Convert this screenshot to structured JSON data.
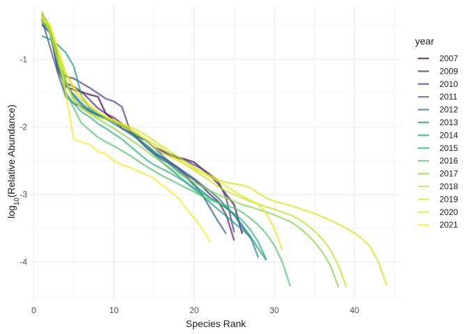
{
  "chart_data": {
    "type": "line",
    "xlabel": "Species Rank",
    "ylabel": "log10(Relative Abundance)",
    "xlim": [
      -0.3,
      45.9
    ],
    "ylim": [
      -4.58,
      -0.2
    ],
    "x_ticks": [
      0,
      10,
      20,
      30,
      40
    ],
    "y_ticks": [
      -1,
      -2,
      -3,
      -4
    ],
    "grid": true,
    "legend_position": "right",
    "legend_title": "year",
    "line_opacity": 0.7,
    "series": [
      {
        "name": "2007",
        "color": "#440154",
        "x": [
          1,
          2,
          3,
          4,
          5,
          6,
          7,
          8,
          9,
          10,
          11,
          12,
          13,
          14,
          15,
          16,
          17,
          18,
          19,
          20,
          21,
          22,
          23,
          24,
          25,
          26
        ],
        "y": [
          -0.42,
          -0.55,
          -1.15,
          -1.4,
          -1.45,
          -1.48,
          -1.52,
          -1.55,
          -1.8,
          -1.9,
          -2.02,
          -2.08,
          -2.14,
          -2.2,
          -2.3,
          -2.35,
          -2.4,
          -2.45,
          -2.48,
          -2.52,
          -2.62,
          -2.72,
          -2.84,
          -3.0,
          -3.15,
          -3.58
        ]
      },
      {
        "name": "2009",
        "color": "#482173",
        "x": [
          1,
          2,
          3,
          4,
          5,
          6,
          7,
          8,
          9,
          10,
          11,
          12,
          13,
          14,
          15,
          16,
          17,
          18,
          19,
          20,
          21,
          22,
          23,
          24,
          25
        ],
        "y": [
          -0.48,
          -0.6,
          -1.1,
          -1.35,
          -1.4,
          -1.48,
          -1.6,
          -1.72,
          -1.8,
          -1.86,
          -1.95,
          -2.05,
          -2.18,
          -2.3,
          -2.4,
          -2.45,
          -2.52,
          -2.6,
          -2.7,
          -2.78,
          -2.88,
          -3.0,
          -3.1,
          -3.3,
          -3.68
        ]
      },
      {
        "name": "2010",
        "color": "#433E85",
        "x": [
          1,
          2,
          3,
          4,
          5,
          6,
          7,
          8,
          9,
          10,
          11,
          12,
          13,
          14,
          15,
          16,
          17,
          18,
          19,
          20,
          21,
          22,
          23,
          24,
          25
        ],
        "y": [
          -0.38,
          -0.5,
          -1.12,
          -1.25,
          -1.28,
          -1.35,
          -1.42,
          -1.5,
          -1.58,
          -1.62,
          -1.7,
          -2.05,
          -2.12,
          -2.2,
          -2.3,
          -2.38,
          -2.42,
          -2.46,
          -2.5,
          -2.56,
          -2.62,
          -2.7,
          -2.8,
          -3.05,
          -3.56
        ]
      },
      {
        "name": "2011",
        "color": "#38598C",
        "x": [
          1,
          2,
          3,
          4,
          5,
          6,
          7,
          8,
          9,
          10,
          11,
          12,
          13,
          14,
          15,
          16,
          17,
          18,
          19,
          20,
          21,
          22,
          23,
          24
        ],
        "y": [
          -0.4,
          -0.8,
          -1.2,
          -1.55,
          -1.65,
          -1.7,
          -1.78,
          -1.83,
          -1.88,
          -1.92,
          -1.98,
          -2.05,
          -2.18,
          -2.28,
          -2.38,
          -2.48,
          -2.55,
          -2.62,
          -2.72,
          -2.85,
          -3.0,
          -3.2,
          -3.4,
          -3.58
        ]
      },
      {
        "name": "2012",
        "color": "#2D708E",
        "x": [
          1,
          2,
          3,
          4,
          5,
          6,
          7,
          8,
          9,
          10,
          11,
          12,
          13,
          14,
          15,
          16,
          17,
          18,
          19,
          20,
          21,
          22,
          23,
          24,
          25,
          26,
          27
        ],
        "y": [
          -0.35,
          -0.5,
          -1.1,
          -1.38,
          -1.52,
          -1.65,
          -1.75,
          -1.82,
          -1.87,
          -1.92,
          -1.98,
          -2.05,
          -2.12,
          -2.2,
          -2.3,
          -2.42,
          -2.52,
          -2.6,
          -2.68,
          -2.76,
          -2.86,
          -2.95,
          -3.05,
          -3.18,
          -3.3,
          -3.48,
          -3.64
        ]
      },
      {
        "name": "2013",
        "color": "#25858E",
        "x": [
          1,
          2,
          3,
          4,
          5,
          6,
          7,
          8,
          9,
          10,
          11,
          12,
          13,
          14,
          15,
          16,
          17,
          18,
          19,
          20,
          21,
          22,
          23,
          24,
          25,
          26,
          27,
          28
        ],
        "y": [
          -0.32,
          -0.5,
          -0.95,
          -1.35,
          -1.55,
          -1.68,
          -1.76,
          -1.82,
          -1.88,
          -1.95,
          -2.02,
          -2.1,
          -2.18,
          -2.26,
          -2.36,
          -2.45,
          -2.55,
          -2.65,
          -2.75,
          -2.86,
          -2.95,
          -3.05,
          -3.12,
          -3.2,
          -3.3,
          -3.45,
          -3.62,
          -3.93
        ]
      },
      {
        "name": "2014",
        "color": "#1E9B8A",
        "x": [
          1,
          2,
          3,
          4,
          5,
          6,
          7,
          8,
          9,
          10,
          11,
          12,
          13,
          14,
          15,
          16,
          17,
          18,
          19,
          20,
          21,
          22,
          23,
          24,
          25,
          26,
          27,
          28,
          29
        ],
        "y": [
          -0.65,
          -0.7,
          -0.78,
          -0.9,
          -1.1,
          -1.55,
          -1.72,
          -1.8,
          -1.86,
          -1.92,
          -1.98,
          -2.05,
          -2.15,
          -2.28,
          -2.4,
          -2.52,
          -2.62,
          -2.72,
          -2.82,
          -2.92,
          -3.02,
          -3.12,
          -3.22,
          -3.32,
          -3.42,
          -3.52,
          -3.62,
          -3.8,
          -3.97
        ]
      },
      {
        "name": "2015",
        "color": "#2BB07F",
        "x": [
          1,
          2,
          3,
          4,
          5,
          6,
          7,
          8,
          9,
          10,
          11,
          12,
          13,
          14,
          15,
          16,
          17,
          18,
          19,
          20,
          21,
          22,
          23,
          24,
          25,
          26,
          27,
          28,
          29
        ],
        "y": [
          -0.4,
          -0.6,
          -1.0,
          -1.5,
          -1.65,
          -1.78,
          -1.85,
          -1.95,
          -2.02,
          -2.1,
          -2.18,
          -2.28,
          -2.38,
          -2.48,
          -2.56,
          -2.62,
          -2.68,
          -2.75,
          -2.82,
          -2.9,
          -2.98,
          -3.05,
          -3.12,
          -3.2,
          -3.28,
          -3.38,
          -3.52,
          -3.7,
          -3.96
        ]
      },
      {
        "name": "2016",
        "color": "#51C56A",
        "x": [
          1,
          2,
          3,
          4,
          5,
          6,
          7,
          8,
          9,
          10,
          11,
          12,
          13,
          14,
          15,
          16,
          17,
          18,
          19,
          20,
          21,
          22,
          23,
          24,
          25,
          26,
          27,
          28,
          29,
          30,
          31,
          32
        ],
        "y": [
          -0.45,
          -0.55,
          -1.05,
          -1.48,
          -1.72,
          -1.95,
          -2.05,
          -2.15,
          -2.22,
          -2.28,
          -2.35,
          -2.42,
          -2.5,
          -2.58,
          -2.65,
          -2.72,
          -2.78,
          -2.84,
          -2.9,
          -2.96,
          -3.02,
          -3.08,
          -3.12,
          -3.16,
          -3.2,
          -3.26,
          -3.35,
          -3.45,
          -3.58,
          -3.75,
          -4.0,
          -4.36
        ]
      },
      {
        "name": "2017",
        "color": "#85D54A",
        "x": [
          1,
          2,
          3,
          4,
          5,
          6,
          7,
          8,
          9,
          10,
          11,
          12,
          13,
          14,
          15,
          16,
          17,
          18,
          19,
          20,
          21,
          22,
          23,
          24,
          25,
          26,
          27,
          28,
          29,
          30,
          31,
          32,
          33,
          34,
          35,
          36,
          37,
          38
        ],
        "y": [
          -0.38,
          -0.55,
          -0.9,
          -1.3,
          -1.6,
          -1.72,
          -1.8,
          -1.88,
          -1.95,
          -2.02,
          -2.1,
          -2.18,
          -2.26,
          -2.35,
          -2.44,
          -2.52,
          -2.6,
          -2.68,
          -2.75,
          -2.82,
          -2.88,
          -2.94,
          -3.0,
          -3.05,
          -3.1,
          -3.15,
          -3.18,
          -3.22,
          -3.26,
          -3.3,
          -3.35,
          -3.4,
          -3.48,
          -3.58,
          -3.7,
          -3.85,
          -4.05,
          -4.37
        ]
      },
      {
        "name": "2018",
        "color": "#C2DF23",
        "x": [
          1,
          2,
          3,
          4,
          5,
          6,
          7,
          8,
          9,
          10,
          11,
          12,
          13,
          14,
          15,
          16,
          17,
          18,
          19,
          20,
          21,
          22,
          23,
          24,
          25,
          26,
          27,
          28,
          29,
          30,
          31,
          32,
          33,
          34,
          35,
          36,
          37,
          38,
          39
        ],
        "y": [
          -0.28,
          -0.6,
          -1.0,
          -1.35,
          -1.6,
          -1.72,
          -1.8,
          -1.85,
          -1.88,
          -1.92,
          -1.98,
          -2.05,
          -2.12,
          -2.18,
          -2.25,
          -2.32,
          -2.4,
          -2.48,
          -2.56,
          -2.64,
          -2.72,
          -2.8,
          -2.88,
          -2.95,
          -3.0,
          -3.05,
          -3.1,
          -3.14,
          -3.18,
          -3.22,
          -3.26,
          -3.3,
          -3.36,
          -3.44,
          -3.54,
          -3.66,
          -3.82,
          -4.05,
          -4.37
        ]
      },
      {
        "name": "2019",
        "color": "#D8E219",
        "x": [
          1,
          2,
          3,
          4,
          5,
          6,
          7,
          8,
          9,
          10,
          11,
          12,
          13,
          14,
          15,
          16,
          17,
          18,
          19,
          20,
          21,
          22,
          23,
          24,
          25,
          26,
          27,
          28,
          29,
          30,
          31,
          32,
          33,
          34,
          35,
          36,
          37,
          38,
          39,
          40,
          41,
          42,
          43,
          44
        ],
        "y": [
          -0.35,
          -0.5,
          -0.85,
          -1.2,
          -1.45,
          -1.6,
          -1.7,
          -1.78,
          -1.85,
          -1.9,
          -1.95,
          -2.0,
          -2.05,
          -2.12,
          -2.2,
          -2.28,
          -2.36,
          -2.44,
          -2.52,
          -2.6,
          -2.66,
          -2.72,
          -2.78,
          -2.82,
          -2.84,
          -2.86,
          -2.9,
          -2.98,
          -3.05,
          -3.1,
          -3.13,
          -3.16,
          -3.2,
          -3.24,
          -3.28,
          -3.33,
          -3.38,
          -3.44,
          -3.5,
          -3.57,
          -3.66,
          -3.78,
          -4.0,
          -4.34
        ]
      },
      {
        "name": "2020",
        "color": "#E9E51A",
        "x": [
          1,
          2,
          3,
          4,
          5,
          6,
          7,
          8,
          9,
          10,
          11,
          12,
          13,
          14,
          15,
          16,
          17,
          18,
          19,
          20,
          21,
          22,
          23,
          24,
          25,
          26,
          27,
          28,
          29,
          30,
          31
        ],
        "y": [
          -0.42,
          -0.5,
          -0.85,
          -1.2,
          -1.4,
          -1.55,
          -1.68,
          -1.78,
          -1.85,
          -1.9,
          -1.96,
          -2.02,
          -2.1,
          -2.2,
          -2.3,
          -2.38,
          -2.44,
          -2.5,
          -2.56,
          -2.62,
          -2.68,
          -2.74,
          -2.8,
          -2.88,
          -2.95,
          -3.02,
          -3.08,
          -3.15,
          -3.28,
          -3.5,
          -3.82
        ]
      },
      {
        "name": "2021",
        "color": "#FDE725",
        "x": [
          1,
          2,
          3,
          4,
          5,
          6,
          7,
          8,
          9,
          10,
          11,
          12,
          13,
          14,
          15,
          16,
          17,
          18,
          19,
          20,
          21,
          22
        ],
        "y": [
          -0.38,
          -0.48,
          -0.85,
          -1.5,
          -2.18,
          -2.22,
          -2.26,
          -2.36,
          -2.4,
          -2.5,
          -2.56,
          -2.6,
          -2.65,
          -2.7,
          -2.76,
          -2.86,
          -2.95,
          -3.05,
          -3.2,
          -3.35,
          -3.5,
          -3.7
        ]
      }
    ]
  }
}
